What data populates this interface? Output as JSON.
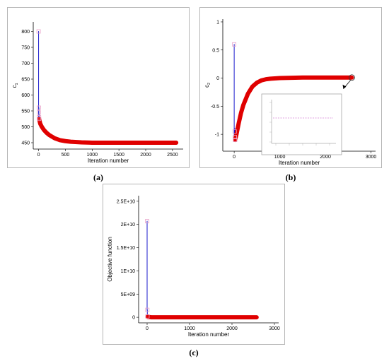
{
  "captions": [
    "(a)",
    "(b)",
    "(c)"
  ],
  "chart_data": [
    {
      "type": "line",
      "xlabel": "Iteration number",
      "ylabel": "c",
      "ylabel_sub": "1",
      "xlim": [
        -100,
        2700
      ],
      "ylim": [
        430,
        830
      ],
      "xticks": [
        0,
        500,
        1000,
        1500,
        2000,
        2500
      ],
      "yticks": [
        450,
        500,
        550,
        600,
        650,
        700,
        750,
        800
      ],
      "ytick_labels": [
        "450",
        "500",
        "550",
        "600",
        "650",
        "700",
        "750",
        "800"
      ],
      "series": [
        {
          "role": "spike",
          "color": "#1a1acc",
          "x": [
            0,
            0,
            5,
            5,
            10,
            10
          ],
          "y": [
            800,
            525,
            560,
            530,
            540,
            520
          ]
        },
        {
          "role": "converged",
          "color": "#e00000",
          "x": [
            10,
            30,
            60,
            100,
            150,
            200,
            300,
            400,
            500,
            600,
            800,
            1000,
            1500,
            2000,
            2570
          ],
          "y": [
            525,
            510,
            500,
            490,
            481,
            474,
            464,
            458,
            455,
            453,
            451,
            450,
            450,
            450,
            450
          ]
        }
      ],
      "markers": [
        {
          "x": 0,
          "y": 800
        },
        {
          "x": 5,
          "y": 560
        },
        {
          "x": 5,
          "y": 545
        },
        {
          "x": 8,
          "y": 530
        },
        {
          "x": 10,
          "y": 525
        }
      ]
    },
    {
      "type": "line",
      "xlabel": "Iteration number",
      "ylabel": "c",
      "ylabel_sub": "2",
      "xlim": [
        -250,
        3100
      ],
      "ylim": [
        -1.3,
        1.05
      ],
      "xticks": [
        0,
        1000,
        2000,
        3000
      ],
      "yticks": [
        -1,
        -0.5,
        0,
        0.5,
        1
      ],
      "ytick_labels": [
        "-1",
        "-0.5",
        "0",
        "0.5",
        "1"
      ],
      "series": [
        {
          "role": "spike",
          "color": "#1a1acc",
          "x": [
            0,
            0,
            15,
            15
          ],
          "y": [
            0.6,
            -1.05,
            -0.9,
            -1.1
          ]
        },
        {
          "role": "converged",
          "color": "#e00000",
          "x": [
            20,
            50,
            100,
            150,
            200,
            300,
            400,
            500,
            600,
            700,
            800,
            1000,
            1500,
            2000,
            2580
          ],
          "y": [
            -1.1,
            -1.0,
            -0.8,
            -0.62,
            -0.48,
            -0.28,
            -0.15,
            -0.08,
            -0.04,
            -0.02,
            -0.01,
            0.0,
            0.01,
            0.01,
            0.01
          ]
        }
      ],
      "markers": [
        {
          "x": 0,
          "y": 0.6
        },
        {
          "x": 10,
          "y": -0.95
        },
        {
          "x": 15,
          "y": -1.05
        },
        {
          "x": 20,
          "y": -1.1
        }
      ],
      "inset": {
        "highlight": {
          "x": 2580,
          "y": 0.01
        },
        "value": 0.01
      }
    },
    {
      "type": "line",
      "xlabel": "Iteration number",
      "ylabel": "Objective function",
      "xlim": [
        -200,
        3100
      ],
      "ylim": [
        -1200000000.0,
        26200000000.0
      ],
      "xticks": [
        0,
        1000,
        2000,
        3000
      ],
      "yticks": [
        0,
        5000000000.0,
        10000000000.0,
        15000000000.0,
        20000000000.0,
        25000000000.0
      ],
      "ytick_labels": [
        "0",
        "5E+09",
        "1E+10",
        "1.5E+10",
        "2E+10",
        "2.5E+10"
      ],
      "series": [
        {
          "role": "spike",
          "color": "#1a1acc",
          "x": [
            0,
            0,
            5,
            5
          ],
          "y": [
            20700000000.0,
            1500000000.0,
            1600000000.0,
            0
          ]
        },
        {
          "role": "converged",
          "color": "#e00000",
          "x": [
            10,
            100,
            500,
            1000,
            1500,
            2000,
            2580
          ],
          "y": [
            100000000.0,
            0,
            0,
            0,
            0,
            0,
            0
          ]
        }
      ],
      "markers": [
        {
          "x": 0,
          "y": 20700000000.0
        },
        {
          "x": 5,
          "y": 1600000000.0
        },
        {
          "x": 8,
          "y": 200000000.0
        }
      ]
    }
  ]
}
